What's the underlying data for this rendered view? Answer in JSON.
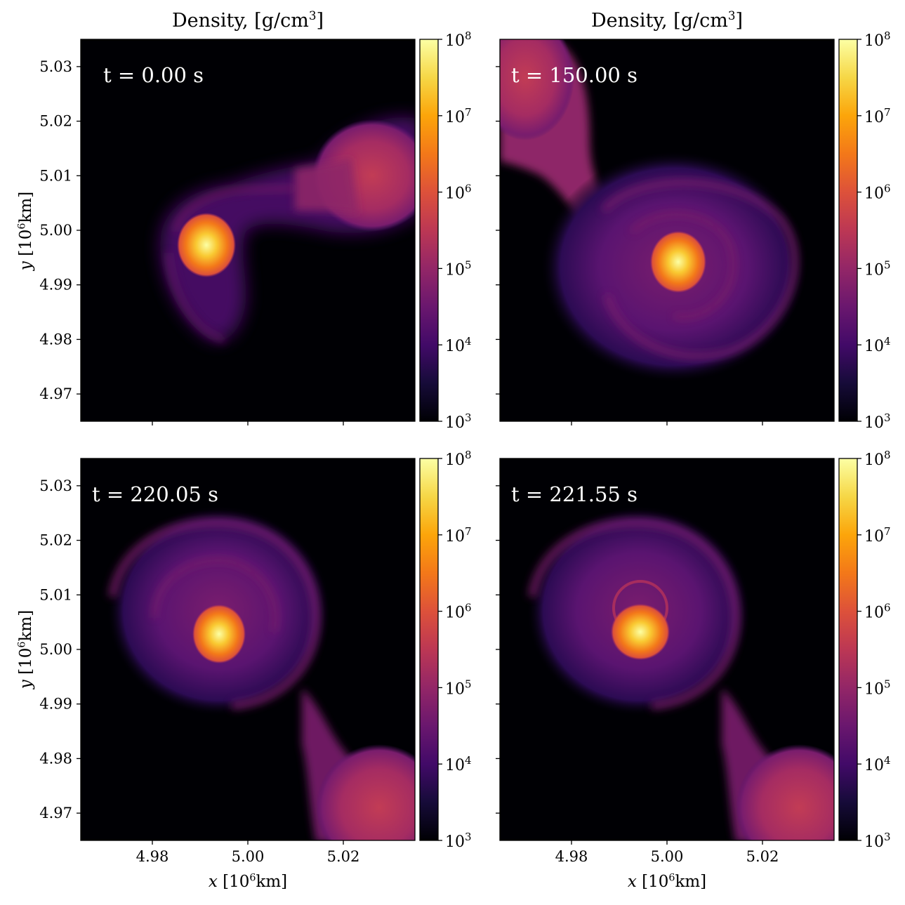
{
  "titles": {
    "left_base": "Density, [g/cm",
    "left_sup": "3",
    "left_close": "]",
    "right_base": "Density, [g/cm",
    "right_sup": "3",
    "right_close": "]"
  },
  "axes": {
    "x_label_italic": "x",
    "x_label_open": "[10",
    "x_label_sup": "6",
    "x_label_unit": "km]",
    "y_label_italic": "y",
    "y_label_open": "[10",
    "y_label_sup": "6",
    "y_label_unit": "km]",
    "x_ticks": [
      "4.98",
      "5.00",
      "5.02"
    ],
    "y_ticks": [
      "5.03",
      "5.02",
      "5.01",
      "5.00",
      "4.99",
      "4.98",
      "4.97"
    ]
  },
  "colorbar": {
    "base": "10",
    "exponents": [
      "8",
      "7",
      "6",
      "5",
      "4",
      "3"
    ]
  },
  "chart_data": {
    "type": "heatmap",
    "colormap": "inferno",
    "quantity": "Density, [g/cm^3]",
    "scale": "log",
    "color_range": [
      1000,
      100000000
    ],
    "xlim": [
      4.965,
      5.035
    ],
    "ylim": [
      4.965,
      5.035
    ],
    "x_unit": "10^6 km",
    "y_unit": "10^6 km",
    "panels": [
      {
        "time_label": "t = 0.00 s"
      },
      {
        "time_label": "t = 150.00 s"
      },
      {
        "time_label": "t = 220.05 s"
      },
      {
        "time_label": "t = 221.55 s"
      }
    ]
  }
}
